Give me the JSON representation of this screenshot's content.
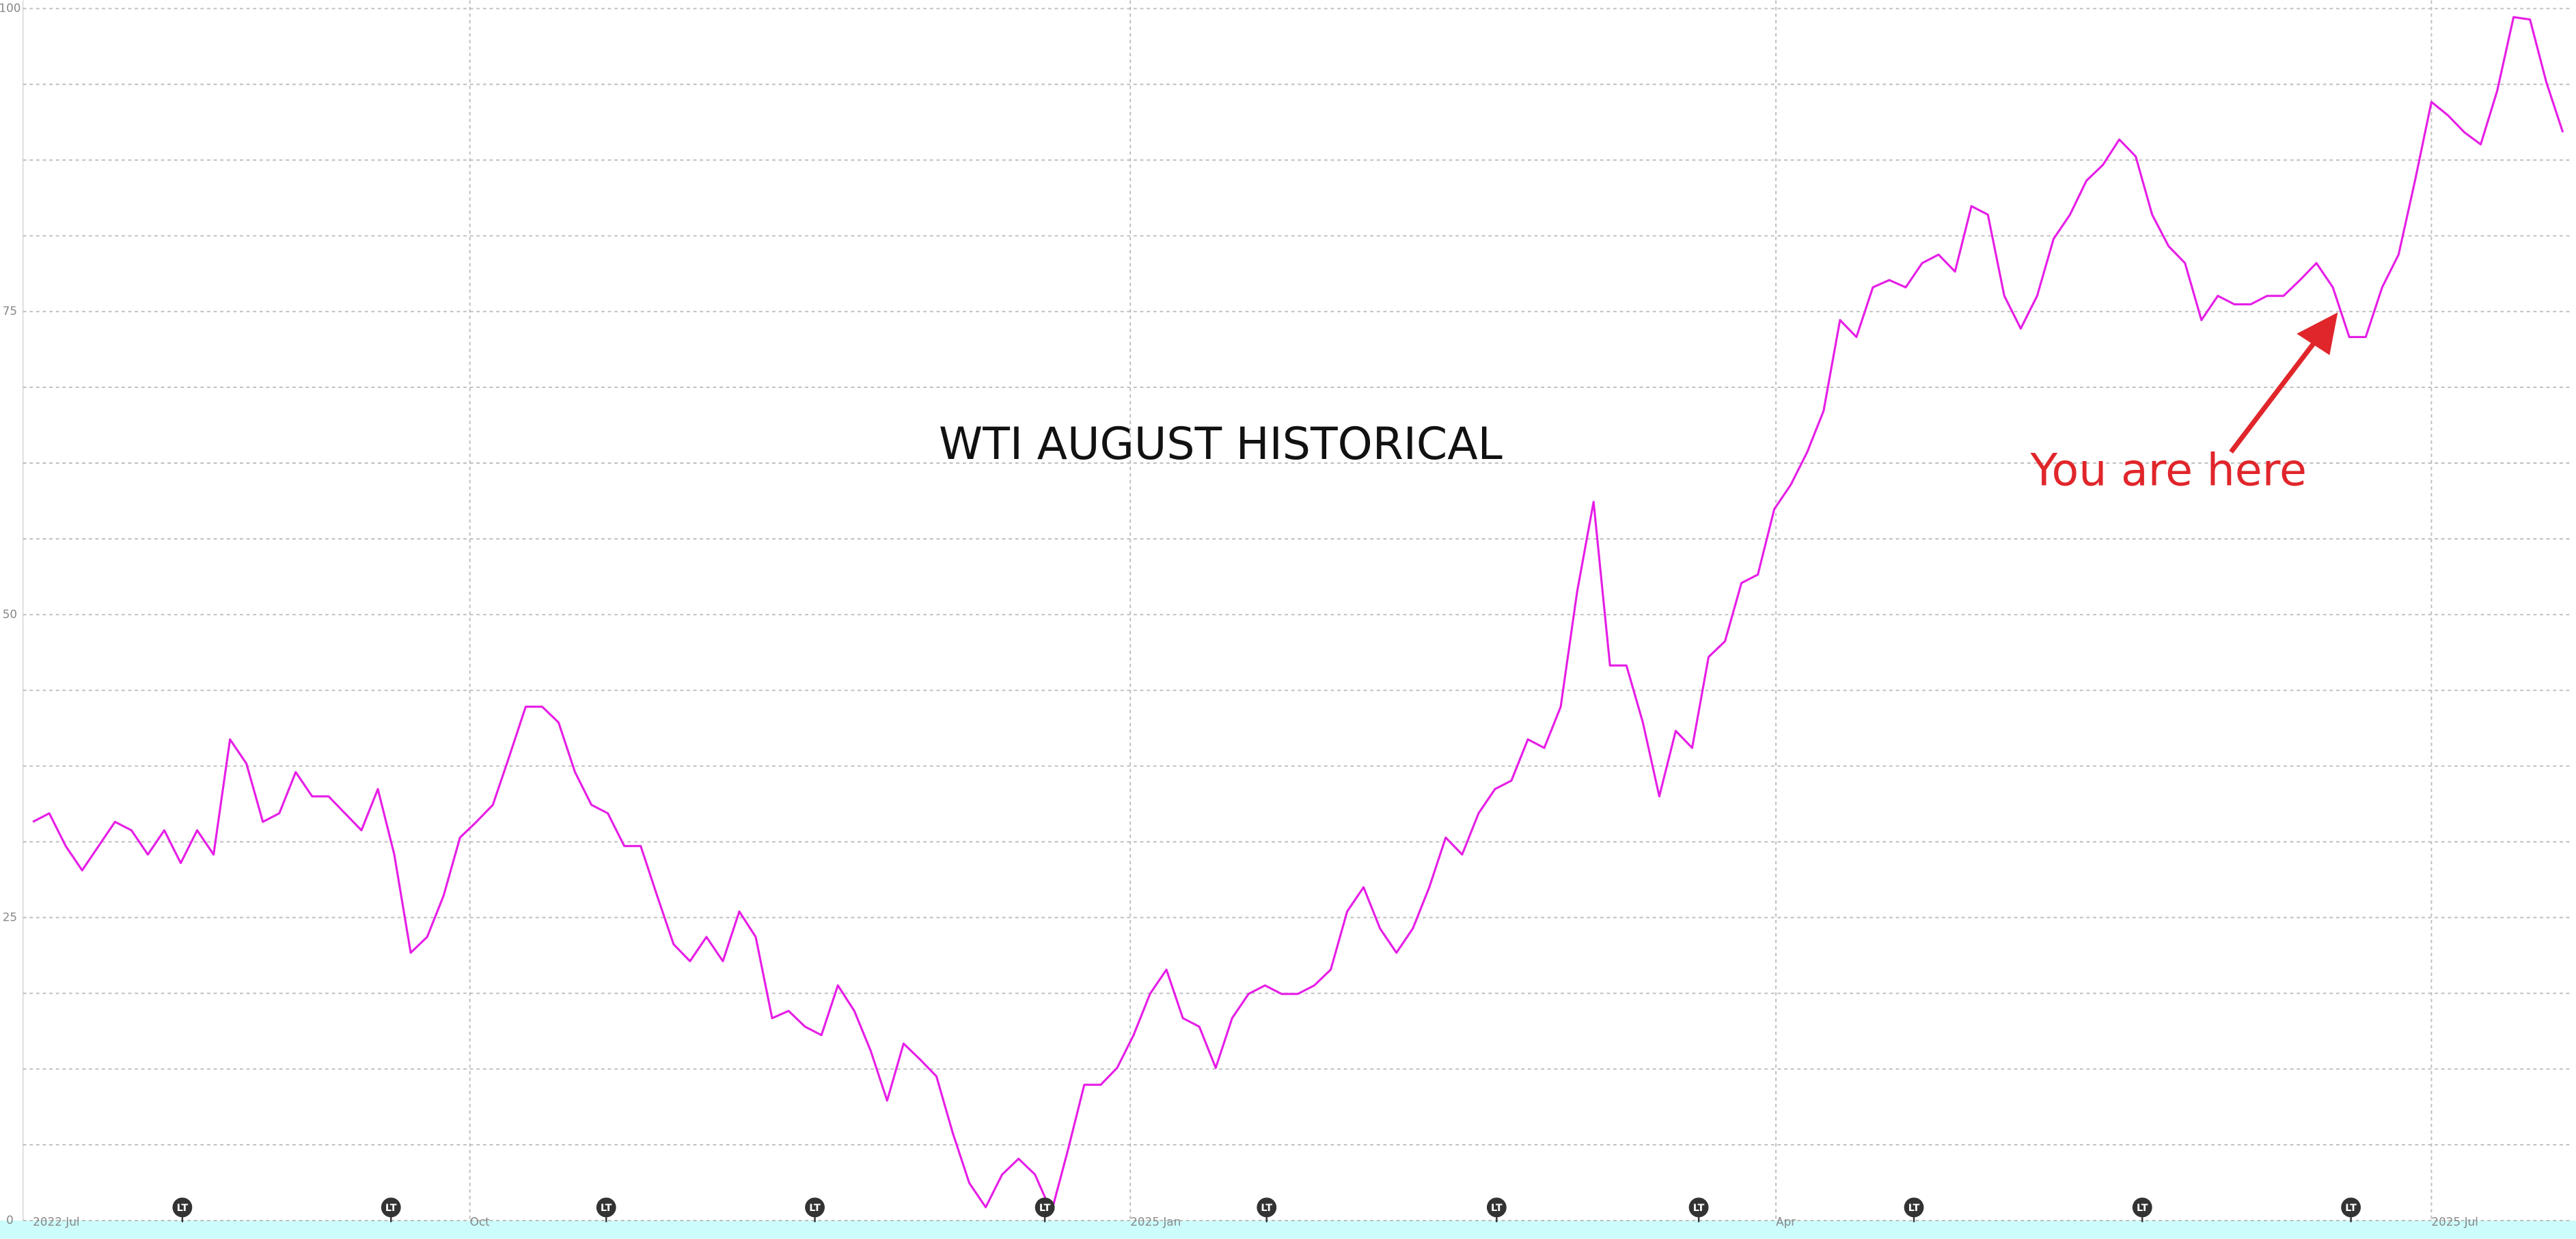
{
  "chart_data": {
    "type": "line",
    "title": "WTI AUGUST HISTORICAL",
    "annotation": "You are here",
    "series": [
      {
        "color": "#e61ee6",
        "values": [
          32.9,
          33.6,
          30.9,
          28.9,
          30.9,
          32.9,
          32.2,
          30.2,
          32.2,
          29.5,
          32.2,
          30.2,
          39.7,
          37.7,
          32.9,
          33.6,
          37.0,
          35.0,
          35.0,
          33.6,
          32.2,
          35.6,
          30.2,
          22.1,
          23.4,
          26.8,
          31.6,
          32.9,
          34.3,
          38.3,
          42.4,
          42.4,
          41.1,
          37.0,
          34.3,
          33.6,
          30.9,
          30.9,
          26.8,
          22.8,
          21.4,
          23.4,
          21.4,
          25.5,
          23.4,
          16.7,
          17.3,
          16.0,
          15.3,
          19.4,
          17.3,
          14.0,
          9.9,
          14.6,
          13.3,
          11.9,
          7.2,
          3.1,
          1.1,
          3.8,
          5.1,
          3.8,
          0.7,
          5.8,
          11.2,
          11.2,
          12.6,
          15.3,
          18.7,
          20.7,
          16.7,
          16.0,
          12.6,
          16.7,
          18.7,
          19.4,
          18.7,
          18.7,
          19.4,
          20.7,
          25.5,
          27.5,
          24.1,
          22.1,
          24.1,
          27.5,
          31.6,
          30.2,
          33.6,
          35.6,
          36.3,
          39.7,
          39.0,
          42.4,
          51.9,
          59.3,
          45.8,
          45.8,
          41.1,
          35.0,
          40.4,
          39.0,
          46.5,
          47.8,
          52.6,
          53.3,
          58.7,
          60.7,
          63.4,
          66.8,
          74.3,
          72.9,
          77.0,
          77.6,
          77.0,
          79.0,
          79.7,
          78.3,
          83.7,
          83.0,
          76.3,
          73.6,
          76.3,
          81.0,
          83.0,
          85.8,
          87.1,
          89.2,
          87.8,
          83.0,
          80.4,
          79.0,
          74.3,
          76.3,
          75.6,
          75.6,
          76.3,
          76.3,
          77.6,
          79.0,
          77.0,
          72.9,
          72.9,
          77.0,
          79.7,
          85.8,
          92.3,
          91.2,
          89.8,
          88.8,
          93.2,
          99.3,
          99.1,
          93.9,
          89.8
        ]
      }
    ],
    "xlim": [
      0,
      154
    ],
    "xticks": [
      {
        "value": 0,
        "label": "2022 Jul"
      },
      {
        "value": 26.6,
        "label": "Oct"
      },
      {
        "value": 66.8,
        "label": "2025 Jan"
      },
      {
        "value": 106.1,
        "label": "Apr"
      },
      {
        "value": 146,
        "label": "2025 Jul"
      }
    ],
    "ylim": [
      0,
      100
    ],
    "yticks": [
      0,
      25,
      50,
      75,
      100
    ],
    "minor_yticks": [
      6.25,
      12.5,
      18.75,
      31.25,
      37.5,
      43.75,
      56.25,
      62.5,
      68.75,
      81.25,
      87.5,
      93.75
    ],
    "grid": true,
    "markers": [
      {
        "label": "LT",
        "x": 9.1
      },
      {
        "label": "LT",
        "x": 21.8
      },
      {
        "label": "LT",
        "x": 34.9
      },
      {
        "label": "LT",
        "x": 47.6
      },
      {
        "label": "LT",
        "x": 61.6
      },
      {
        "label": "LT",
        "x": 75.1
      },
      {
        "label": "LT",
        "x": 89.1
      },
      {
        "label": "LT",
        "x": 101.4
      },
      {
        "label": "LT",
        "x": 114.5
      },
      {
        "label": "LT",
        "x": 128.4
      },
      {
        "label": "LT",
        "x": 141.1
      }
    ]
  }
}
